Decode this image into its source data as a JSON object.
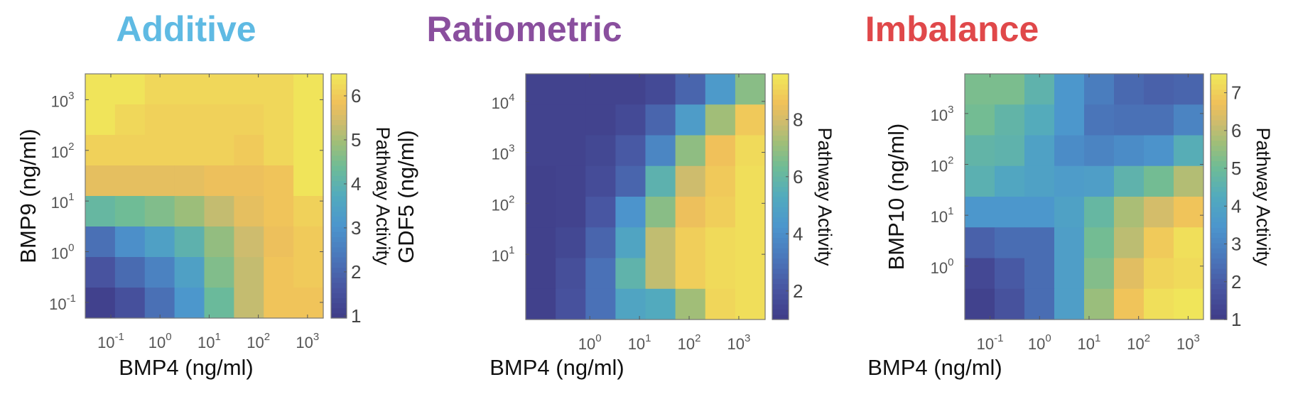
{
  "colormap": "parula",
  "chart_data": [
    {
      "type": "heatmap",
      "title": "Additive",
      "title_color": "#5fbae3",
      "xlabel": "BMP4 (ng/ml)",
      "ylabel": "BMP9 (ng/ml)",
      "colorbar_label": "Pathway Activity",
      "x_scale": "log10",
      "xlim_log10": [
        -1.52,
        3.32
      ],
      "ylim_log10": [
        -1.31,
        3.51
      ],
      "x_ticks_exp": [
        "-1",
        "0",
        "1",
        "2",
        "3"
      ],
      "y_ticks_exp": [
        "-1",
        "0",
        "1",
        "2",
        "3"
      ],
      "clim": [
        0.95,
        6.5
      ],
      "colorbar_ticks": [
        "1",
        "2",
        "3",
        "4",
        "5",
        "6"
      ],
      "values": [
        [
          6.4,
          6.4,
          6.2,
          6.2,
          6.2,
          6.2,
          6.2,
          6.4
        ],
        [
          6.4,
          6.2,
          6.1,
          6.1,
          6.1,
          6.1,
          6.2,
          6.4
        ],
        [
          6.1,
          6.1,
          6.1,
          6.1,
          6.1,
          6.0,
          6.2,
          6.4
        ],
        [
          5.7,
          5.7,
          5.7,
          5.7,
          5.8,
          5.8,
          5.9,
          6.4
        ],
        [
          4.2,
          4.4,
          4.6,
          4.9,
          5.3,
          5.7,
          5.9,
          6.1
        ],
        [
          2.2,
          2.9,
          3.4,
          4.0,
          4.8,
          5.4,
          5.8,
          6.0
        ],
        [
          1.6,
          2.1,
          2.6,
          3.4,
          4.6,
          5.3,
          5.9,
          6.0
        ],
        [
          1.1,
          1.5,
          2.2,
          3.1,
          4.3,
          5.3,
          5.9,
          5.9
        ]
      ]
    },
    {
      "type": "heatmap",
      "title": "Ratiometric",
      "title_color": "#8a4f9e",
      "xlabel": "BMP4 (ng/ml)",
      "ylabel": "GDF5 (ng/ml)",
      "colorbar_label": "Pathway Activity",
      "x_scale": "log10",
      "xlim_log10": [
        -1.29,
        3.53
      ],
      "ylim_log10": [
        -0.28,
        4.54
      ],
      "x_ticks_exp": [
        "0",
        "1",
        "2",
        "3"
      ],
      "y_ticks_exp": [
        "1",
        "2",
        "3",
        "4"
      ],
      "clim": [
        1.0,
        9.6
      ],
      "colorbar_ticks": [
        "2",
        "4",
        "6",
        "8"
      ],
      "values": [
        [
          1.3,
          1.3,
          1.3,
          1.3,
          1.6,
          2.6,
          4.5,
          6.8
        ],
        [
          1.3,
          1.3,
          1.3,
          1.6,
          2.6,
          4.6,
          7.2,
          8.8
        ],
        [
          1.3,
          1.3,
          1.5,
          2.2,
          3.7,
          6.9,
          8.6,
          9.2
        ],
        [
          1.2,
          1.3,
          1.7,
          2.6,
          5.7,
          7.9,
          8.8,
          9.3
        ],
        [
          1.2,
          1.3,
          2.1,
          4.2,
          6.8,
          8.5,
          8.9,
          9.3
        ],
        [
          1.2,
          1.5,
          2.6,
          5.0,
          7.7,
          8.9,
          9.2,
          9.3
        ],
        [
          1.2,
          1.8,
          3.0,
          5.8,
          7.7,
          8.9,
          9.2,
          9.3
        ],
        [
          1.2,
          1.9,
          3.0,
          5.0,
          5.3,
          7.2,
          9.1,
          9.3
        ]
      ]
    },
    {
      "type": "heatmap",
      "title": "Imbalance",
      "title_color": "#e0484a",
      "xlabel": "BMP4 (ng/ml)",
      "ylabel": "BMP10 (ng/ml)",
      "colorbar_label": "Pathway Activity",
      "x_scale": "log10",
      "xlim_log10": [
        -1.51,
        3.31
      ],
      "ylim_log10": [
        -1.05,
        3.78
      ],
      "x_ticks_exp": [
        "-1",
        "0",
        "1",
        "2",
        "3"
      ],
      "y_ticks_exp": [
        "0",
        "1",
        "2",
        "3"
      ],
      "clim": [
        1.0,
        7.5
      ],
      "colorbar_ticks": [
        "1",
        "2",
        "3",
        "4",
        "5",
        "6",
        "7"
      ],
      "values": [
        [
          5.2,
          5.2,
          4.6,
          3.5,
          2.8,
          2.3,
          2.1,
          2.2
        ],
        [
          5.1,
          4.7,
          4.3,
          3.5,
          2.6,
          2.5,
          2.5,
          3.0
        ],
        [
          4.7,
          4.6,
          3.9,
          3.2,
          3.0,
          3.2,
          3.4,
          4.4
        ],
        [
          4.5,
          4.1,
          3.9,
          3.7,
          3.8,
          4.6,
          5.1,
          5.9
        ],
        [
          3.5,
          3.5,
          3.5,
          3.9,
          4.8,
          5.8,
          6.3,
          6.8
        ],
        [
          2.1,
          2.4,
          2.4,
          3.8,
          5.1,
          6.0,
          6.9,
          7.3
        ],
        [
          1.4,
          1.9,
          2.4,
          3.8,
          5.3,
          6.5,
          7.1,
          7.2
        ],
        [
          1.2,
          1.7,
          2.4,
          3.8,
          5.6,
          6.8,
          7.3,
          7.4
        ]
      ]
    }
  ]
}
